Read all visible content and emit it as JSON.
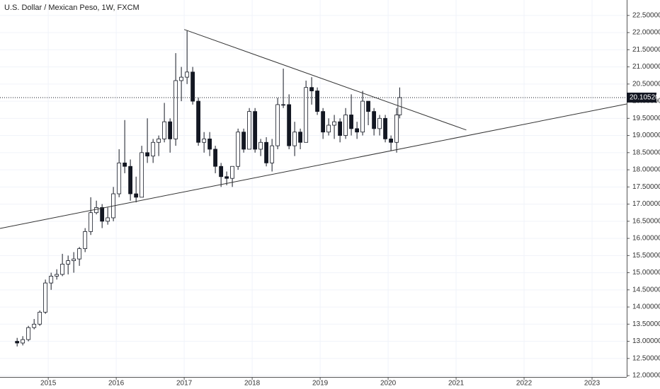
{
  "chart_data": {
    "type": "candlestick",
    "title": "U.S. Dollar / Mexican Peso, 1W, FXCM",
    "x": [
      2014.542,
      2014.625,
      2014.708,
      2014.792,
      2014.875,
      2014.958,
      2015.042,
      2015.125,
      2015.208,
      2015.292,
      2015.375,
      2015.458,
      2015.542,
      2015.625,
      2015.708,
      2015.792,
      2015.875,
      2015.958,
      2016.042,
      2016.125,
      2016.208,
      2016.292,
      2016.375,
      2016.458,
      2016.542,
      2016.625,
      2016.708,
      2016.792,
      2016.875,
      2016.958,
      2017.042,
      2017.125,
      2017.208,
      2017.292,
      2017.375,
      2017.458,
      2017.542,
      2017.625,
      2017.708,
      2017.792,
      2017.875,
      2017.958,
      2018.042,
      2018.125,
      2018.208,
      2018.292,
      2018.375,
      2018.458,
      2018.542,
      2018.625,
      2018.708,
      2018.792,
      2018.875,
      2018.958,
      2019.042,
      2019.125,
      2019.208,
      2019.292,
      2019.375,
      2019.458,
      2019.542,
      2019.625,
      2019.708,
      2019.792,
      2019.875,
      2019.958,
      2020.042,
      2020.125,
      2020.17
    ],
    "open": [
      13.0,
      12.95,
      13.05,
      13.4,
      13.5,
      13.85,
      14.7,
      14.9,
      14.95,
      15.25,
      15.35,
      15.4,
      15.7,
      16.2,
      16.75,
      16.9,
      16.5,
      16.6,
      17.3,
      18.2,
      18.1,
      17.3,
      17.2,
      18.5,
      18.4,
      18.8,
      18.9,
      19.4,
      18.9,
      20.6,
      20.7,
      20.85,
      20.0,
      18.8,
      18.9,
      18.6,
      18.1,
      17.8,
      17.75,
      18.1,
      19.1,
      18.6,
      19.7,
      18.6,
      18.8,
      18.2,
      18.7,
      19.9,
      19.9,
      18.7,
      19.1,
      18.8,
      20.4,
      20.3,
      19.7,
      19.1,
      19.3,
      19.4,
      19.0,
      19.6,
      19.2,
      19.1,
      20.0,
      19.7,
      19.2,
      19.5,
      18.9,
      18.8,
      19.6
    ],
    "high": [
      13.1,
      13.15,
      13.45,
      13.65,
      13.9,
      14.8,
      15.0,
      15.1,
      15.55,
      15.5,
      15.6,
      15.75,
      16.3,
      17.2,
      17.1,
      17.0,
      16.9,
      17.5,
      18.6,
      19.45,
      18.3,
      17.8,
      18.7,
      19.5,
      18.9,
      19.0,
      19.95,
      19.5,
      21.4,
      21.0,
      22.05,
      21.0,
      20.1,
      19.1,
      19.1,
      18.7,
      18.2,
      17.95,
      18.1,
      19.2,
      19.2,
      19.8,
      19.8,
      18.9,
      18.95,
      18.9,
      20.1,
      20.95,
      20.2,
      19.4,
      19.2,
      20.6,
      20.7,
      20.4,
      19.8,
      19.5,
      19.6,
      19.5,
      19.8,
      20.2,
      19.4,
      20.3,
      20.0,
      19.8,
      19.6,
      19.6,
      19.0,
      19.8,
      20.4
    ],
    "low": [
      12.85,
      12.88,
      13.0,
      13.35,
      13.45,
      13.8,
      14.5,
      14.8,
      14.9,
      14.95,
      15.0,
      15.2,
      15.6,
      16.1,
      16.7,
      16.3,
      16.4,
      16.5,
      17.2,
      17.9,
      17.1,
      17.05,
      17.2,
      18.2,
      18.2,
      18.4,
      18.8,
      18.5,
      18.7,
      20.0,
      20.5,
      19.9,
      18.7,
      18.5,
      18.4,
      17.9,
      17.5,
      17.55,
      17.5,
      18.0,
      18.5,
      18.6,
      18.5,
      18.4,
      18.1,
      17.95,
      18.6,
      19.8,
      18.6,
      18.4,
      18.6,
      18.8,
      19.9,
      19.6,
      18.9,
      19.0,
      18.9,
      18.8,
      18.9,
      19.0,
      18.9,
      19.0,
      19.3,
      19.0,
      19.0,
      18.8,
      18.55,
      18.5,
      19.5
    ],
    "close": [
      12.95,
      13.05,
      13.4,
      13.5,
      13.85,
      14.7,
      14.9,
      14.95,
      15.25,
      15.35,
      15.4,
      15.7,
      16.2,
      16.75,
      16.9,
      16.5,
      16.6,
      17.3,
      18.2,
      18.1,
      17.3,
      17.2,
      18.5,
      18.4,
      18.8,
      18.9,
      19.4,
      18.9,
      20.6,
      20.7,
      20.85,
      20.0,
      18.8,
      18.9,
      18.6,
      18.1,
      17.8,
      17.75,
      18.1,
      19.1,
      18.6,
      19.7,
      18.6,
      18.8,
      18.2,
      18.7,
      19.9,
      19.9,
      18.7,
      19.1,
      18.8,
      20.4,
      20.3,
      19.7,
      19.1,
      19.3,
      19.4,
      19.0,
      19.6,
      19.2,
      19.1,
      20.0,
      19.7,
      19.2,
      19.5,
      18.9,
      18.8,
      19.6,
      20.1052
    ],
    "color": "#131722",
    "xlim": [
      2014.29,
      2023.51
    ],
    "xticks": [
      2015,
      2016,
      2017,
      2018,
      2019,
      2020,
      2021,
      2022,
      2023
    ],
    "ylim": [
      11.96,
      22.95
    ],
    "yticks": [
      {
        "value": 12,
        "label": "12.00000"
      },
      {
        "value": 12.5,
        "label": "12.50000"
      },
      {
        "value": 13,
        "label": "13.00000"
      },
      {
        "value": 13.5,
        "label": "13.50000"
      },
      {
        "value": 14,
        "label": "14.00000"
      },
      {
        "value": 14.5,
        "label": "14.50000"
      },
      {
        "value": 15,
        "label": "15.00000"
      },
      {
        "value": 15.5,
        "label": "15.50000"
      },
      {
        "value": 16,
        "label": "16.00000"
      },
      {
        "value": 16.5,
        "label": "16.50000"
      },
      {
        "value": 17,
        "label": "17.00000"
      },
      {
        "value": 17.5,
        "label": "17.50000"
      },
      {
        "value": 18,
        "label": "18.00000"
      },
      {
        "value": 18.5,
        "label": "18.50000"
      },
      {
        "value": 19,
        "label": "19.00000"
      },
      {
        "value": 19.5,
        "label": "19.50000"
      },
      {
        "value": 20,
        "label": "20.00000"
      },
      {
        "value": 20.5,
        "label": "20.50000"
      },
      {
        "value": 21,
        "label": "21.00000"
      },
      {
        "value": 21.5,
        "label": "21.50000"
      },
      {
        "value": 22,
        "label": "22.00000"
      },
      {
        "value": 22.5,
        "label": "22.50000"
      }
    ],
    "grid": true,
    "last_price": {
      "value": 20.1052,
      "label": "20.10520"
    },
    "trendlines": [
      {
        "x": [
          2017.0,
          2021.15
        ],
        "y": [
          22.09,
          19.16
        ]
      },
      {
        "x": [
          2014.29,
          2023.51
        ],
        "y": [
          16.29,
          19.92
        ]
      }
    ]
  }
}
